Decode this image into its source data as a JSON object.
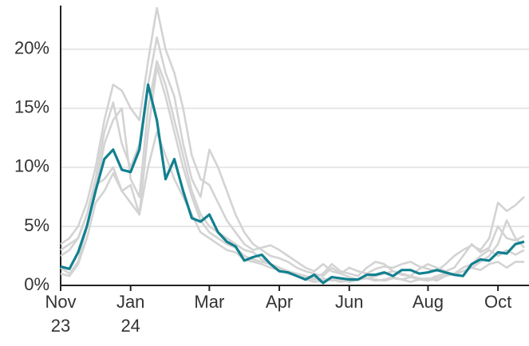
{
  "chart_data": {
    "type": "line",
    "categories": [
      "Nov\n23",
      null,
      null,
      null,
      null,
      null,
      null,
      null,
      "Jan\n24",
      null,
      null,
      null,
      null,
      null,
      null,
      null,
      null,
      "Mar",
      null,
      null,
      null,
      null,
      null,
      null,
      null,
      "Apr",
      null,
      null,
      null,
      null,
      null,
      null,
      null,
      "Jun",
      null,
      null,
      null,
      null,
      null,
      null,
      null,
      null,
      "Aug",
      null,
      null,
      null,
      null,
      null,
      null,
      null,
      "Oct",
      null,
      null,
      null
    ],
    "series": [
      {
        "color": "#d3d3d3",
        "values": [
          3.5,
          4,
          5,
          7,
          10,
          14,
          17,
          16.5,
          15,
          14,
          19,
          23.5,
          20,
          18,
          15,
          11,
          9,
          8.5,
          7,
          5.5,
          4.5,
          3.5,
          3,
          3.2,
          3.4,
          3,
          2.5,
          2,
          1.5,
          1.2,
          1.8,
          1.2,
          1,
          1.5,
          1.2,
          1,
          1.4,
          1.6,
          1.5,
          1.8,
          2,
          1.6,
          1.4,
          1.2,
          1.8,
          2.5,
          3,
          3.4,
          3,
          4,
          7,
          6.3,
          6.8,
          7.5
        ]
      },
      {
        "color": "#d3d3d3",
        "values": [
          2.5,
          3,
          4,
          6,
          9,
          13,
          15.5,
          12,
          10,
          12,
          17,
          21,
          18,
          16,
          12,
          9,
          7.5,
          11.5,
          10,
          8,
          6,
          4.5,
          3.5,
          3,
          2.5,
          2.3,
          2,
          1.5,
          1.2,
          1,
          0.8,
          1.5,
          1,
          0.7,
          0.5,
          0.6,
          0.8,
          1,
          1.2,
          1,
          0.8,
          1.4,
          1.8,
          1.5,
          1.2,
          1.5,
          2.5,
          3.5,
          2.8,
          3.2,
          5,
          4,
          3.8,
          4.2
        ]
      },
      {
        "color": "#d3d3d3",
        "values": [
          1.5,
          1,
          2,
          5,
          8,
          12,
          14,
          15,
          9,
          7.5,
          15,
          19,
          17,
          14,
          11,
          8,
          6,
          5,
          4.5,
          4,
          3.5,
          3,
          2.8,
          2.2,
          1.8,
          1.5,
          1.2,
          1,
          0.8,
          0.6,
          1,
          1.8,
          1.2,
          1,
          0.8,
          1.5,
          2,
          1.8,
          1.2,
          0.9,
          0.8,
          0.6,
          0.5,
          0.8,
          1,
          0.9,
          1.2,
          1.5,
          2,
          2.5,
          3.5,
          5.5,
          4,
          3.2
        ]
      },
      {
        "color": "#d3d3d3",
        "values": [
          3,
          3.5,
          4,
          6,
          8.5,
          9,
          10,
          8,
          7,
          6,
          13,
          18.5,
          16,
          13,
          10,
          7.5,
          5.5,
          4.5,
          4,
          3.5,
          3.2,
          2.5,
          2.2,
          2,
          1.8,
          1.5,
          1.2,
          0.8,
          0.5,
          0.3,
          0.4,
          0.5,
          0.3,
          0.4,
          0.5,
          0.6,
          0.4,
          0.5,
          0.7,
          0.5,
          0.3,
          0.5,
          0.6,
          0.4,
          0.8,
          1,
          1.5,
          1.8,
          2.5,
          3,
          2.5,
          3,
          2.6,
          3
        ]
      },
      {
        "color": "#d3d3d3",
        "values": [
          1,
          0.8,
          1.8,
          4,
          7,
          8,
          9.5,
          8,
          8.5,
          6,
          10,
          13,
          11,
          9,
          7.5,
          6,
          4.5,
          4,
          3.5,
          3,
          2.8,
          2.2,
          2,
          1.8,
          1.5,
          1.3,
          1,
          0.8,
          0.6,
          0.5,
          0.6,
          0.4,
          0.5,
          0.3,
          0.5,
          0.6,
          0.5,
          0.4,
          0.6,
          0.5,
          0.7,
          0.5,
          0.4,
          0.6,
          0.8,
          1,
          1.2,
          1.5,
          1.3,
          1.8,
          2,
          1.5,
          2,
          2
        ]
      },
      {
        "color": "#12808f",
        "values": [
          1.6,
          1.4,
          2.8,
          5,
          8,
          10.7,
          11.5,
          9.8,
          9.6,
          11.5,
          17,
          14,
          9,
          10.7,
          8,
          5.7,
          5.4,
          6,
          4.5,
          3.7,
          3.3,
          2.1,
          2.4,
          2.6,
          1.8,
          1.2,
          1.1,
          0.8,
          0.5,
          0.9,
          0.2,
          0.7,
          0.6,
          0.5,
          0.5,
          0.9,
          0.9,
          1.1,
          0.8,
          1.3,
          1.3,
          1.0,
          1.1,
          1.3,
          1.1,
          0.9,
          0.8,
          1.8,
          2.2,
          2.1,
          2.8,
          2.7,
          3.5,
          3.7
        ]
      }
    ],
    "ylim": [
      0,
      23.7
    ],
    "yticks": [
      {
        "value": 0,
        "label": "0%"
      },
      {
        "value": 5,
        "label": "5%"
      },
      {
        "value": 10,
        "label": "10%"
      },
      {
        "value": 15,
        "label": "15%"
      },
      {
        "value": 20,
        "label": "20%"
      }
    ],
    "grid": true
  }
}
